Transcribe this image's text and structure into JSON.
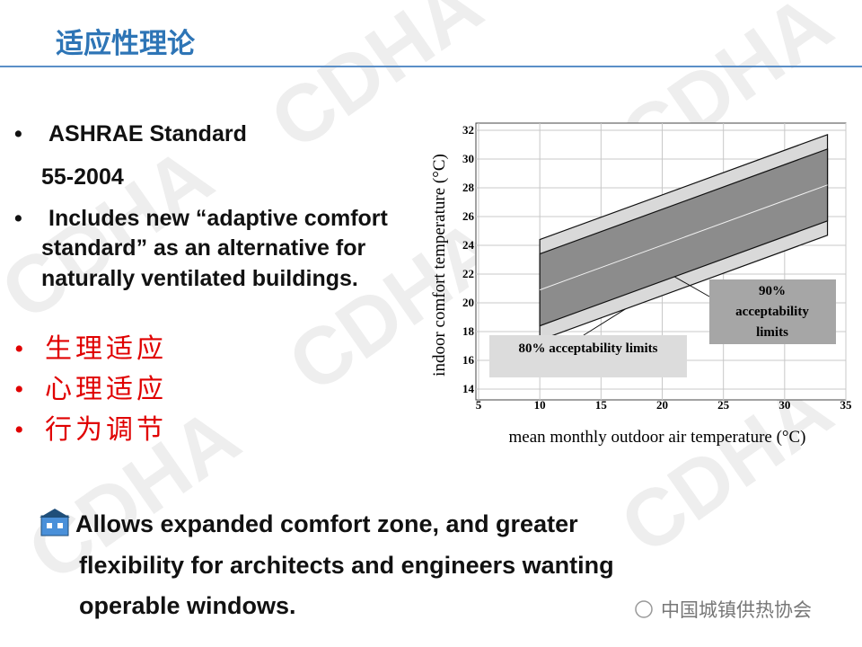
{
  "header": {
    "title": "适应性理论"
  },
  "watermark": "CDHA",
  "bullets": [
    "ASHRAE Standard",
    "55-2004",
    "Includes new “adaptive comfort",
    "standard” as an alternative for",
    "naturally ventilated buildings."
  ],
  "cn_bullets": [
    "生理适应",
    "心理适应",
    "行为调节"
  ],
  "bottom_text": [
    "Allows expanded comfort zone, and greater",
    "flexibility for architects and engineers wanting",
    "operable windows."
  ],
  "footer": "中国城镇供热协会",
  "chart_data": {
    "type": "band",
    "x_label": "mean monthly outdoor air temperature (°C)",
    "y_label": "indoor comfort  temperature (°C)",
    "xlim": [
      5,
      35
    ],
    "xticks": [
      5,
      10,
      15,
      20,
      25,
      30,
      35
    ],
    "ylim": [
      14,
      32
    ],
    "yticks": [
      14,
      16,
      18,
      20,
      22,
      24,
      26,
      28,
      30,
      32
    ],
    "grid": true,
    "x": [
      10,
      33.5
    ],
    "bands": [
      {
        "label": [
          "80% acceptability limits"
        ],
        "color": "#d9d9d9",
        "upper": [
          24.4,
          31.7
        ],
        "lower": [
          17.4,
          24.7
        ]
      },
      {
        "label": [
          "90%",
          "acceptability",
          "limits"
        ],
        "color": "#8c8c8c",
        "upper": [
          23.4,
          30.7
        ],
        "lower": [
          18.4,
          25.7
        ]
      }
    ],
    "center": [
      20.9,
      28.2
    ]
  }
}
